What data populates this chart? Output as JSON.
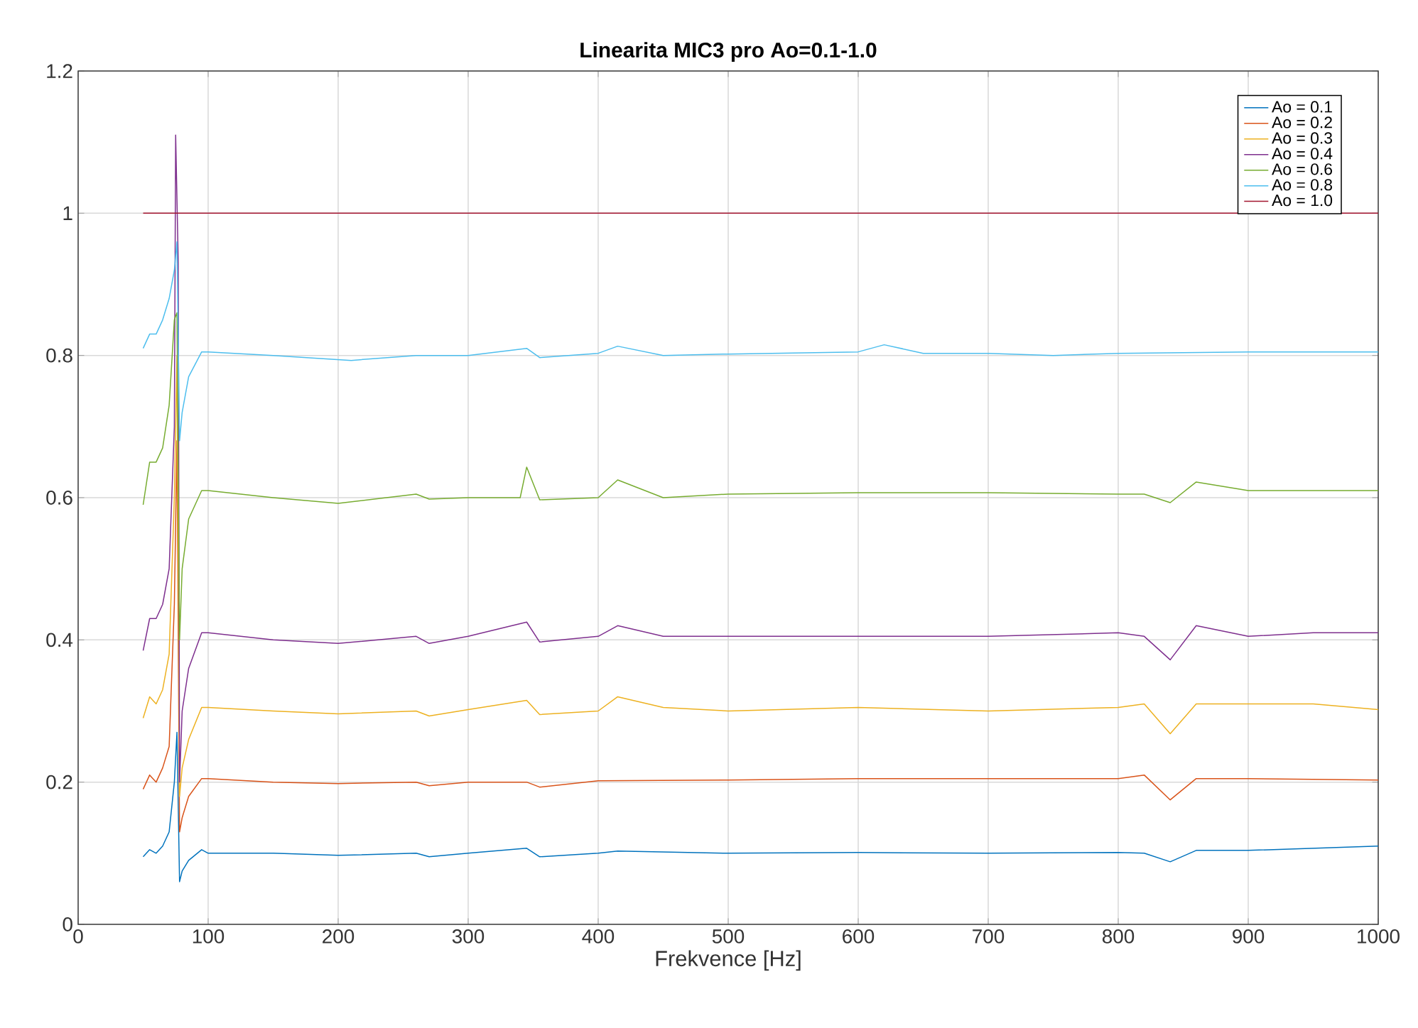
{
  "chart_data": {
    "type": "line",
    "title": "Linearita MIC3 pro Ao=0.1-1.0",
    "xlabel": "Frekvence [Hz]",
    "xlim": [
      0,
      1000
    ],
    "xticks": [
      0,
      100,
      200,
      300,
      400,
      500,
      600,
      700,
      800,
      900,
      1000
    ],
    "ylim": [
      0,
      1.2
    ],
    "yticks": [
      0,
      0.2,
      0.4,
      0.6,
      0.8,
      1,
      1.2
    ],
    "grid": true,
    "legend": "top right",
    "marker": "none",
    "line_style": "solid",
    "series": [
      {
        "name": "Ao = 0.1",
        "color": "#0072bd",
        "x": [
          50,
          55,
          60,
          65,
          70,
          74,
          76,
          78,
          80,
          85,
          95,
          100,
          150,
          200,
          260,
          270,
          300,
          345,
          355,
          400,
          415,
          500,
          600,
          700,
          800,
          820,
          840,
          860,
          900,
          1000
        ],
        "values": [
          0.095,
          0.105,
          0.1,
          0.11,
          0.13,
          0.2,
          0.27,
          0.06,
          0.075,
          0.09,
          0.105,
          0.1,
          0.1,
          0.097,
          0.1,
          0.095,
          0.1,
          0.107,
          0.095,
          0.1,
          0.103,
          0.1,
          0.101,
          0.1,
          0.101,
          0.1,
          0.088,
          0.104,
          0.104,
          0.11
        ]
      },
      {
        "name": "Ao = 0.2",
        "color": "#d95319",
        "x": [
          50,
          55,
          60,
          65,
          70,
          74,
          76,
          78,
          80,
          85,
          95,
          100,
          150,
          200,
          260,
          270,
          300,
          345,
          355,
          400,
          500,
          600,
          700,
          800,
          820,
          840,
          860,
          900,
          1000
        ],
        "values": [
          0.19,
          0.21,
          0.2,
          0.22,
          0.25,
          0.45,
          0.68,
          0.13,
          0.15,
          0.18,
          0.205,
          0.205,
          0.2,
          0.198,
          0.2,
          0.195,
          0.2,
          0.2,
          0.193,
          0.202,
          0.203,
          0.205,
          0.205,
          0.205,
          0.21,
          0.175,
          0.205,
          0.205,
          0.203
        ]
      },
      {
        "name": "Ao = 0.3",
        "color": "#edb120",
        "x": [
          50,
          55,
          60,
          65,
          70,
          74,
          76,
          78,
          80,
          85,
          95,
          100,
          150,
          200,
          260,
          270,
          300,
          345,
          355,
          400,
          415,
          450,
          500,
          600,
          700,
          800,
          820,
          840,
          860,
          900,
          950,
          1000
        ],
        "values": [
          0.29,
          0.32,
          0.31,
          0.33,
          0.38,
          0.6,
          0.8,
          0.18,
          0.22,
          0.26,
          0.305,
          0.305,
          0.3,
          0.296,
          0.3,
          0.293,
          0.302,
          0.315,
          0.295,
          0.3,
          0.32,
          0.305,
          0.3,
          0.305,
          0.3,
          0.305,
          0.31,
          0.268,
          0.31,
          0.31,
          0.31,
          0.302
        ]
      },
      {
        "name": "Ao = 0.4",
        "color": "#7e2f8e",
        "x": [
          50,
          55,
          60,
          65,
          70,
          74,
          75,
          77,
          78,
          80,
          85,
          95,
          100,
          150,
          200,
          260,
          270,
          300,
          345,
          355,
          400,
          415,
          450,
          500,
          600,
          700,
          800,
          820,
          840,
          860,
          900,
          950,
          1000
        ],
        "values": [
          0.385,
          0.43,
          0.43,
          0.45,
          0.5,
          0.7,
          1.11,
          0.93,
          0.2,
          0.3,
          0.36,
          0.41,
          0.41,
          0.4,
          0.395,
          0.405,
          0.395,
          0.405,
          0.425,
          0.397,
          0.405,
          0.42,
          0.405,
          0.405,
          0.405,
          0.405,
          0.41,
          0.405,
          0.372,
          0.42,
          0.405,
          0.41,
          0.41
        ]
      },
      {
        "name": "Ao = 0.6",
        "color": "#77ac30",
        "x": [
          50,
          55,
          60,
          65,
          70,
          74,
          76,
          78,
          80,
          85,
          95,
          100,
          150,
          200,
          260,
          270,
          300,
          340,
          345,
          355,
          400,
          415,
          450,
          500,
          600,
          700,
          800,
          820,
          840,
          860,
          900,
          950,
          1000
        ],
        "values": [
          0.59,
          0.65,
          0.65,
          0.67,
          0.73,
          0.85,
          0.86,
          0.4,
          0.5,
          0.57,
          0.61,
          0.61,
          0.6,
          0.592,
          0.605,
          0.598,
          0.6,
          0.6,
          0.643,
          0.597,
          0.6,
          0.625,
          0.6,
          0.605,
          0.607,
          0.607,
          0.605,
          0.605,
          0.593,
          0.622,
          0.61,
          0.61,
          0.61
        ]
      },
      {
        "name": "Ao = 0.8",
        "color": "#4dbeee",
        "x": [
          50,
          55,
          60,
          65,
          70,
          74,
          76,
          78,
          80,
          85,
          95,
          100,
          150,
          210,
          260,
          300,
          345,
          355,
          400,
          415,
          450,
          500,
          600,
          620,
          650,
          700,
          750,
          800,
          900,
          1000
        ],
        "values": [
          0.81,
          0.83,
          0.83,
          0.85,
          0.88,
          0.92,
          0.96,
          0.68,
          0.72,
          0.77,
          0.805,
          0.805,
          0.8,
          0.793,
          0.8,
          0.8,
          0.81,
          0.797,
          0.803,
          0.813,
          0.8,
          0.802,
          0.805,
          0.815,
          0.803,
          0.803,
          0.8,
          0.803,
          0.805,
          0.805
        ]
      },
      {
        "name": "Ao = 1.0",
        "color": "#a2142f",
        "x": [
          50,
          1000
        ],
        "values": [
          1,
          1
        ]
      }
    ]
  }
}
